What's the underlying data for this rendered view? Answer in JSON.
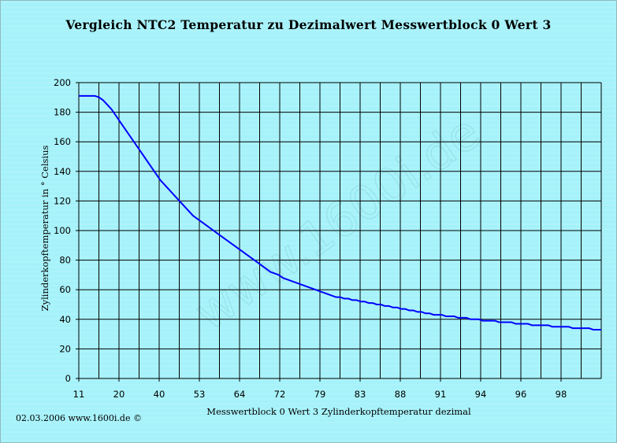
{
  "chart_data": {
    "type": "line",
    "title": "Vergleich NTC2 Temperatur zu Dezimalwert Messwertblock 0 Wert 3",
    "xlabel": "Messwertblock 0 Wert 3 Zylinderkopftemperatur dezimal",
    "ylabel": "Zylinderkopftemperatur in ° Celsius",
    "ylim": [
      0,
      200
    ],
    "yticks": [
      0,
      20,
      40,
      60,
      80,
      100,
      120,
      140,
      160,
      180,
      200
    ],
    "x_tick_labels": [
      "11",
      "20",
      "40",
      "53",
      "64",
      "72",
      "79",
      "83",
      "88",
      "91",
      "94",
      "96",
      "98"
    ],
    "x_tick_label_index_step": 2,
    "grid": true,
    "line_color": "#0000ff",
    "series": [
      {
        "values": [
          191,
          191,
          191,
          191,
          191,
          190,
          188,
          185,
          182,
          178,
          174,
          170,
          166,
          162,
          158,
          154,
          150,
          146,
          142,
          138,
          134,
          131,
          128,
          125,
          122,
          119,
          116,
          113,
          110,
          108,
          106,
          104,
          102,
          100,
          98,
          96,
          94,
          92,
          90,
          88,
          86,
          84,
          82,
          80,
          78,
          76,
          74,
          72,
          71,
          70,
          68,
          67,
          66,
          65,
          64,
          63,
          62,
          61,
          60,
          59,
          58,
          57,
          56,
          55,
          55,
          54,
          54,
          53,
          53,
          52,
          52,
          51,
          51,
          50,
          50,
          49,
          49,
          48,
          48,
          47,
          47,
          46,
          46,
          45,
          45,
          44,
          44,
          43,
          43,
          43,
          42,
          42,
          42,
          41,
          41,
          41,
          40,
          40,
          40,
          39,
          39,
          39,
          39,
          38,
          38,
          38,
          38,
          37,
          37,
          37,
          37,
          36,
          36,
          36,
          36,
          36,
          35,
          35,
          35,
          35,
          35,
          34,
          34,
          34,
          34,
          34,
          33,
          33,
          33
        ]
      }
    ]
  },
  "footer": {
    "text": "02.03.2006 www.1600i.de ©"
  },
  "watermark": {
    "text": "www.1600i.de"
  }
}
